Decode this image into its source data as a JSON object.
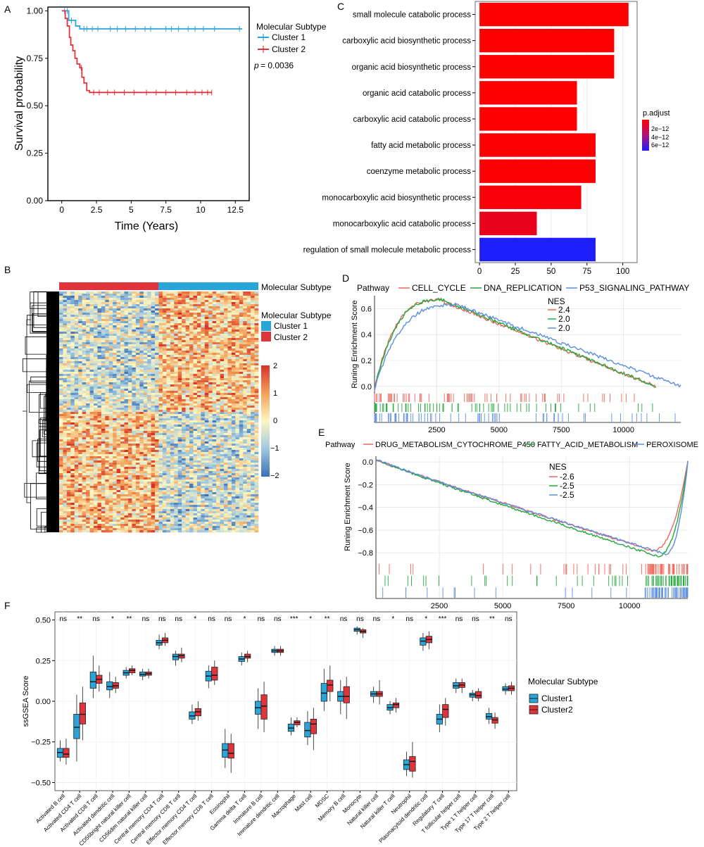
{
  "panels": {
    "A": "A",
    "B": "B",
    "C": "C",
    "D": "D",
    "E": "E",
    "F": "F"
  },
  "colors": {
    "cluster1": "#2aa5d8",
    "cluster2": "#e0343c",
    "cell_cycle": "#f0645a",
    "dna_replication": "#22a83a",
    "p53": "#5c8ee0",
    "drug_met": "#f0645a",
    "fatty_acid": "#22a83a",
    "peroxisome": "#5c8ee0",
    "bar_red": "#ff0000",
    "bar_blue": "#1f1ffb",
    "heat_low": "#3a6fb5",
    "heat_mid": "#fbf7c2",
    "heat_high": "#d73027"
  },
  "chart_data": [
    {
      "id": "A",
      "type": "line",
      "subtype": "kaplan-meier",
      "xlabel": "Time (Years)",
      "ylabel": "Survival probability",
      "xlim": [
        -1,
        13.5
      ],
      "ylim": [
        0,
        1.02
      ],
      "xticks": [
        "0",
        "2.5",
        "5",
        "7.5",
        "10",
        "12.5"
      ],
      "xtick_values": [
        0,
        2.5,
        5,
        7.5,
        10,
        12.5
      ],
      "yticks": [
        "0.00",
        "0.25",
        "0.50",
        "0.75",
        "1.00"
      ],
      "ytick_values": [
        0,
        0.25,
        0.5,
        0.75,
        1.0
      ],
      "legend_title": "Molecular Subtype",
      "pvalue_label": "p",
      "pvalue_text": "= 0.0036",
      "series": [
        {
          "name": "Cluster 1",
          "steps": [
            [
              0,
              1.0
            ],
            [
              0.5,
              0.95
            ],
            [
              1.0,
              0.92
            ],
            [
              1.3,
              0.905
            ],
            [
              13.0,
              0.905
            ]
          ],
          "censors": [
            0.2,
            0.4,
            0.7,
            1.6,
            1.8,
            2.2,
            2.6,
            3.5,
            4.0,
            4.6,
            5.3,
            6.0,
            6.4,
            7.5,
            7.9,
            8.4,
            9.1,
            9.6,
            10.2,
            11.0,
            12.8
          ]
        },
        {
          "name": "Cluster 2",
          "steps": [
            [
              0,
              1.0
            ],
            [
              0.25,
              0.96
            ],
            [
              0.4,
              0.92
            ],
            [
              0.55,
              0.86
            ],
            [
              0.65,
              0.82
            ],
            [
              0.8,
              0.79
            ],
            [
              0.95,
              0.75
            ],
            [
              1.1,
              0.72
            ],
            [
              1.3,
              0.7
            ],
            [
              1.45,
              0.65
            ],
            [
              1.6,
              0.62
            ],
            [
              1.8,
              0.58
            ],
            [
              2.0,
              0.57
            ],
            [
              10.8,
              0.57
            ]
          ],
          "censors": [
            1.4,
            2.3,
            2.7,
            3.3,
            3.8,
            4.5,
            5.2,
            6.1,
            6.8,
            7.5,
            8.2,
            9.0,
            9.6,
            10.1,
            10.5,
            10.8
          ]
        }
      ]
    },
    {
      "id": "B",
      "type": "heatmap",
      "colorbar_ticks": [
        "2",
        "1",
        "0",
        "−1",
        "−2"
      ],
      "colorbar_values": [
        2,
        1,
        0,
        -1,
        -2
      ],
      "annotation_label": "Molecular Subtype",
      "legend_title": "Molecular Subtype",
      "legend_items": [
        "Cluster 1",
        "Cluster 2"
      ],
      "annotation_split": 0.5
    },
    {
      "id": "C",
      "type": "bar",
      "orientation": "horizontal",
      "categories": [
        "small molecule catabolic process",
        "carboxylic acid biosynthetic process",
        "organic acid biosynthetic process",
        "organic acid catabolic process",
        "carboxylic acid catabolic process",
        "fatty acid metabolic process",
        "coenzyme metabolic process",
        "monocarboxylic acid biosynthetic process",
        "monocarboxylic acid catabolic process",
        "regulation of small molecule metabolic process"
      ],
      "values": [
        104,
        94,
        94,
        68,
        68,
        81,
        81,
        71,
        40,
        81
      ],
      "p_adjust": [
        2e-13,
        3e-13,
        3e-13,
        4e-13,
        4e-13,
        6e-13,
        7e-13,
        9e-13,
        1.5e-12,
        7e-12
      ],
      "xlim": [
        -3,
        110
      ],
      "xticks": [
        "0",
        "25",
        "50",
        "75",
        "100"
      ],
      "xtick_values": [
        0,
        25,
        50,
        75,
        100
      ],
      "legend_title": "p.adjust",
      "legend_ticks": [
        "2e−12",
        "4e−12",
        "6e−12"
      ],
      "legend_values": [
        2e-12,
        4e-12,
        6e-12
      ]
    },
    {
      "id": "D",
      "type": "line",
      "subtype": "gsea",
      "ylabel": "Runing Enrichment Score",
      "legend_title": "Pathway",
      "nes_title": "NES",
      "xlim": [
        0,
        12300
      ],
      "ylim": [
        -0.05,
        0.7
      ],
      "xticks": [
        "2500",
        "5000",
        "7500",
        "10000"
      ],
      "xtick_values": [
        2500,
        5000,
        7500,
        10000
      ],
      "yticks": [
        "0.0",
        "0.2",
        "0.4",
        "0.6"
      ],
      "ytick_values": [
        0,
        0.2,
        0.4,
        0.6
      ],
      "series": [
        {
          "name": "CELL_CYCLE",
          "nes": "2.4",
          "peak_x": 2600,
          "peak_y": 0.665,
          "end_x": 11300
        },
        {
          "name": "DNA_REPLICATION",
          "nes": "2.0",
          "peak_x": 2700,
          "peak_y": 0.67,
          "end_x": 11300
        },
        {
          "name": "P53_SIGNALING_PATHWAY",
          "nes": "2.0",
          "peak_x": 3300,
          "peak_y": 0.63,
          "end_x": 12300
        }
      ]
    },
    {
      "id": "E",
      "type": "line",
      "subtype": "gsea",
      "ylabel": "Runing Enrichment Score",
      "legend_title": "Pathway",
      "nes_title": "NES",
      "xlim": [
        0,
        12300
      ],
      "ylim": [
        -0.88,
        0.05
      ],
      "xticks": [
        "2500",
        "5000",
        "7500",
        "10000"
      ],
      "xtick_values": [
        2500,
        5000,
        7500,
        10000
      ],
      "yticks": [
        "0.0",
        "−0.2",
        "−0.4",
        "−0.6",
        "−0.8"
      ],
      "ytick_values": [
        0,
        -0.2,
        -0.4,
        -0.6,
        -0.8
      ],
      "series": [
        {
          "name": "DRUG_METABOLISM_CYTOCHROME_P450",
          "nes": "-2.6",
          "min_x": 10900,
          "min_y": -0.78
        },
        {
          "name": "FATTY_ACID_METABOLISM",
          "nes": "-2.5",
          "min_x": 11100,
          "min_y": -0.83
        },
        {
          "name": "PEROXISOME",
          "nes": "-2.5",
          "min_x": 11400,
          "min_y": -0.81
        }
      ]
    },
    {
      "id": "F",
      "type": "box",
      "ylabel": "ssGSEA Score",
      "ylim": [
        -0.55,
        0.55
      ],
      "yticks": [
        "0.50",
        "0.25",
        "0.00",
        "−0.25",
        "−0.50"
      ],
      "ytick_values": [
        0.5,
        0.25,
        0,
        -0.25,
        -0.5
      ],
      "legend_title": "Molecular Subtype",
      "series_names": [
        "Cluster1",
        "Cluster2"
      ],
      "categories": [
        "Activated B cell",
        "Activated CD4 T cell",
        "Activated CD8 T cell",
        "Activated dendritic cell",
        "CD56bright natural killer cell",
        "CD56dim natural killer cell",
        "Central memory CD4 T cell",
        "Central memory CD8 T cell",
        "Effector memory CD4 T cell",
        "Effector memory CD8 T cell",
        "Eosinophil",
        "Gamma delta T cell",
        "Immature  B cell",
        "Immature dendritic cell",
        "Macrophage",
        "Mast cell",
        "MDSC",
        "Memory B cell",
        "Monocyte",
        "Natural killer cell",
        "Natural killer T cell",
        "Neutrophil",
        "Plasmacytoid dendritic cell",
        "Regulatory T cell",
        "T follicular helper cell",
        "Type 1 T helper cell",
        "Type 17 T helper cell",
        "Type 2 T helper cell"
      ],
      "significance": [
        "ns",
        "**",
        "ns",
        "*",
        "**",
        "ns",
        "ns",
        "ns",
        "*",
        "ns",
        "ns",
        "*",
        "ns",
        "ns",
        "***",
        "*",
        "**",
        "ns",
        "ns",
        "ns",
        "*",
        "ns",
        "*",
        "***",
        "ns",
        "ns",
        "**",
        "ns"
      ],
      "cluster1": [
        [
          -0.37,
          -0.345,
          -0.315,
          -0.29,
          -0.24
        ],
        [
          -0.37,
          -0.23,
          -0.16,
          -0.08,
          0.04
        ],
        [
          0.02,
          0.08,
          0.12,
          0.18,
          0.28
        ],
        [
          0.02,
          0.07,
          0.09,
          0.12,
          0.18
        ],
        [
          0.14,
          0.16,
          0.175,
          0.19,
          0.21
        ],
        [
          0.13,
          0.155,
          0.165,
          0.18,
          0.2
        ],
        [
          0.32,
          0.345,
          0.36,
          0.375,
          0.41
        ],
        [
          0.22,
          0.255,
          0.275,
          0.29,
          0.31
        ],
        [
          -0.14,
          -0.11,
          -0.09,
          -0.065,
          -0.02
        ],
        [
          0.08,
          0.125,
          0.155,
          0.185,
          0.22
        ],
        [
          -0.41,
          -0.345,
          -0.3,
          -0.26,
          -0.17
        ],
        [
          0.22,
          0.245,
          0.26,
          0.275,
          0.3
        ],
        [
          -0.17,
          -0.08,
          -0.04,
          0.0,
          0.08
        ],
        [
          0.28,
          0.3,
          0.31,
          0.32,
          0.34
        ],
        [
          -0.21,
          -0.185,
          -0.165,
          -0.14,
          -0.1
        ],
        [
          -0.27,
          -0.22,
          -0.18,
          -0.13,
          -0.06
        ],
        [
          -0.06,
          0.0,
          0.05,
          0.11,
          0.2
        ],
        [
          -0.08,
          0.0,
          0.03,
          0.06,
          0.13
        ],
        [
          0.41,
          0.43,
          0.44,
          0.45,
          0.46
        ],
        [
          -0.01,
          0.03,
          0.045,
          0.06,
          0.09
        ],
        [
          -0.08,
          -0.055,
          -0.04,
          -0.02,
          0.0
        ],
        [
          -0.46,
          -0.42,
          -0.39,
          -0.36,
          -0.31
        ],
        [
          0.31,
          0.345,
          0.37,
          0.39,
          0.42
        ],
        [
          -0.19,
          -0.14,
          -0.11,
          -0.08,
          -0.02
        ],
        [
          0.05,
          0.08,
          0.095,
          0.115,
          0.14
        ],
        [
          0.0,
          0.025,
          0.04,
          0.05,
          0.07
        ],
        [
          -0.14,
          -0.11,
          -0.095,
          -0.075,
          -0.04
        ],
        [
          0.04,
          0.065,
          0.075,
          0.09,
          0.11
        ]
      ],
      "cluster2": [
        [
          -0.39,
          -0.345,
          -0.325,
          -0.29,
          -0.23
        ],
        [
          -0.24,
          -0.14,
          -0.08,
          -0.01,
          0.09
        ],
        [
          0.06,
          0.11,
          0.135,
          0.16,
          0.22
        ],
        [
          0.05,
          0.08,
          0.095,
          0.115,
          0.15
        ],
        [
          0.16,
          0.175,
          0.19,
          0.2,
          0.22
        ],
        [
          0.14,
          0.16,
          0.17,
          0.18,
          0.2
        ],
        [
          0.34,
          0.36,
          0.375,
          0.39,
          0.42
        ],
        [
          0.24,
          0.265,
          0.28,
          0.29,
          0.33
        ],
        [
          -0.12,
          -0.09,
          -0.065,
          -0.045,
          0.0
        ],
        [
          0.1,
          0.13,
          0.16,
          0.21,
          0.25
        ],
        [
          -0.44,
          -0.35,
          -0.32,
          -0.26,
          -0.2
        ],
        [
          0.24,
          0.265,
          0.275,
          0.29,
          0.31
        ],
        [
          -0.19,
          -0.11,
          -0.03,
          0.04,
          0.12
        ],
        [
          0.28,
          0.3,
          0.31,
          0.32,
          0.34
        ],
        [
          -0.16,
          -0.145,
          -0.13,
          -0.12,
          -0.1
        ],
        [
          -0.3,
          -0.2,
          -0.14,
          -0.11,
          -0.04
        ],
        [
          0.0,
          0.06,
          0.1,
          0.13,
          0.22
        ],
        [
          -0.11,
          -0.01,
          0.03,
          0.09,
          0.15
        ],
        [
          0.39,
          0.42,
          0.43,
          0.44,
          0.45
        ],
        [
          -0.02,
          0.03,
          0.045,
          0.06,
          0.13
        ],
        [
          -0.07,
          -0.04,
          -0.02,
          -0.01,
          0.02
        ],
        [
          -0.47,
          -0.43,
          -0.37,
          -0.34,
          -0.25
        ],
        [
          0.32,
          0.36,
          0.38,
          0.4,
          0.43
        ],
        [
          -0.15,
          -0.1,
          -0.05,
          -0.02,
          0.02
        ],
        [
          0.05,
          0.085,
          0.1,
          0.115,
          0.14
        ],
        [
          0.0,
          0.02,
          0.035,
          0.06,
          0.08
        ],
        [
          -0.17,
          -0.135,
          -0.115,
          -0.1,
          -0.07
        ],
        [
          0.04,
          0.065,
          0.08,
          0.095,
          0.12
        ]
      ]
    }
  ]
}
